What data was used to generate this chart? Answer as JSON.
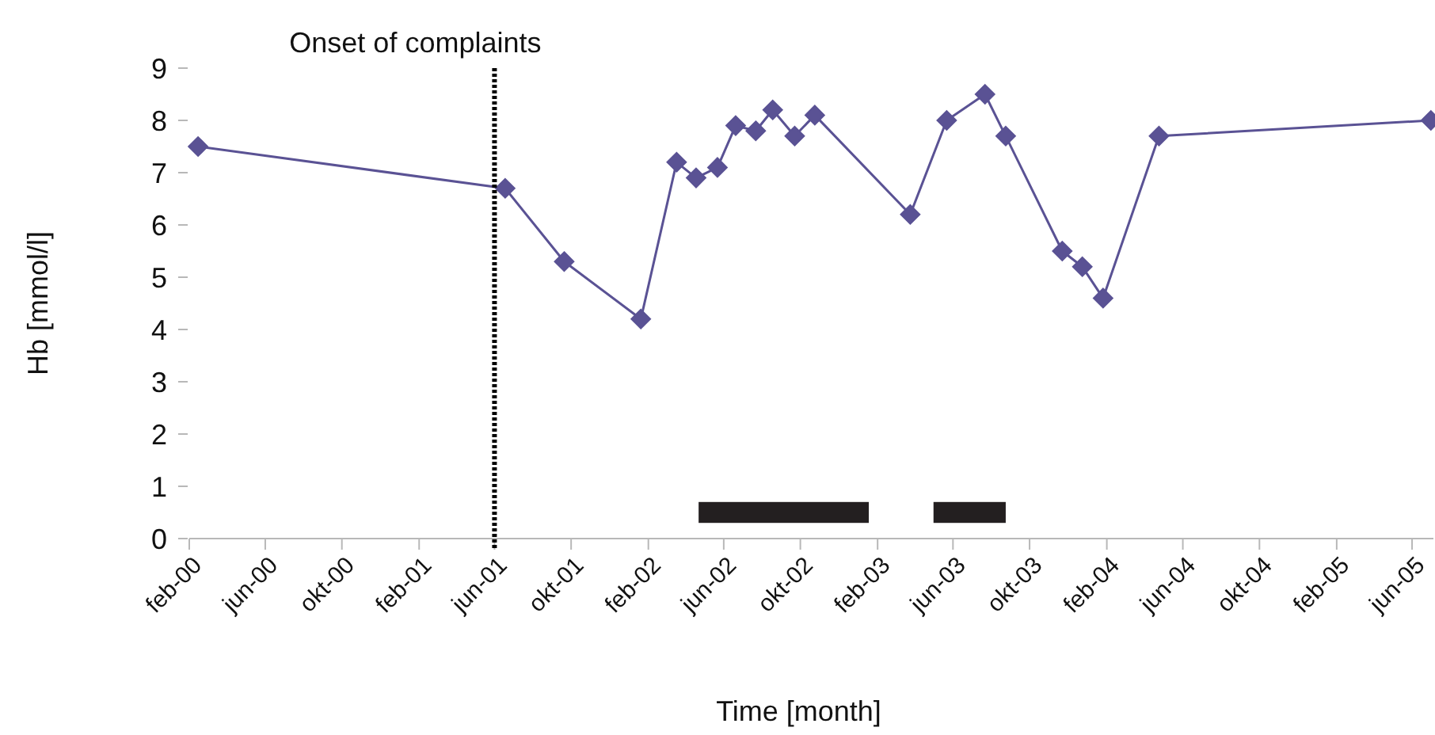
{
  "chart_data": {
    "type": "line",
    "xlabel": "Time [month]",
    "ylabel": "Hb [mmol/l]",
    "x": [
      "2000-02-15",
      "2001-06-18",
      "2001-09-20",
      "2002-01-20",
      "2002-03-18",
      "2002-04-18",
      "2002-05-22",
      "2002-06-20",
      "2002-07-22",
      "2002-08-18",
      "2002-09-22",
      "2002-10-24",
      "2003-03-25",
      "2003-05-22",
      "2003-07-22",
      "2003-08-24",
      "2003-11-22",
      "2003-12-24",
      "2004-01-26",
      "2004-04-24",
      "2005-07-01"
    ],
    "series": [
      {
        "color": "#5a5294",
        "values": [
          7.5,
          6.7,
          5.3,
          4.2,
          7.2,
          6.9,
          7.1,
          7.9,
          7.8,
          8.2,
          7.7,
          8.1,
          6.2,
          8.0,
          8.5,
          7.7,
          5.5,
          5.2,
          4.6,
          7.7,
          8.0
        ]
      }
    ],
    "marker": "diamond",
    "line_style": "solid",
    "grid": false,
    "xlim": [
      "2000-02-01",
      "2005-07-05"
    ],
    "xticks": [
      {
        "value": "2000-02",
        "label": "feb-00"
      },
      {
        "value": "2000-06",
        "label": "jun-00"
      },
      {
        "value": "2000-10",
        "label": "okt-00"
      },
      {
        "value": "2001-02",
        "label": "feb-01"
      },
      {
        "value": "2001-06",
        "label": "jun-01"
      },
      {
        "value": "2001-10",
        "label": "okt-01"
      },
      {
        "value": "2002-02",
        "label": "feb-02"
      },
      {
        "value": "2002-06",
        "label": "jun-02"
      },
      {
        "value": "2002-10",
        "label": "okt-02"
      },
      {
        "value": "2003-02",
        "label": "feb-03"
      },
      {
        "value": "2003-06",
        "label": "jun-03"
      },
      {
        "value": "2003-10",
        "label": "okt-03"
      },
      {
        "value": "2004-02",
        "label": "feb-04"
      },
      {
        "value": "2004-06",
        "label": "jun-04"
      },
      {
        "value": "2004-10",
        "label": "okt-04"
      },
      {
        "value": "2005-02",
        "label": "feb-05"
      },
      {
        "value": "2005-06",
        "label": "jun-05"
      }
    ],
    "ylim": [
      0,
      9
    ],
    "yticks": [
      0,
      1,
      2,
      3,
      4,
      5,
      6,
      7,
      8,
      9
    ],
    "ref_lines": [
      {
        "axis": "x",
        "value": "2001-06",
        "label": "Onset of complaints",
        "color": "#000000",
        "line_style": "dotted"
      }
    ],
    "bands": [
      {
        "axis": "x",
        "from": "2002-04-22",
        "to": "2003-01-18",
        "color": "#231f20"
      },
      {
        "axis": "x",
        "from": "2003-05-01",
        "to": "2003-08-24",
        "color": "#231f20"
      }
    ]
  }
}
